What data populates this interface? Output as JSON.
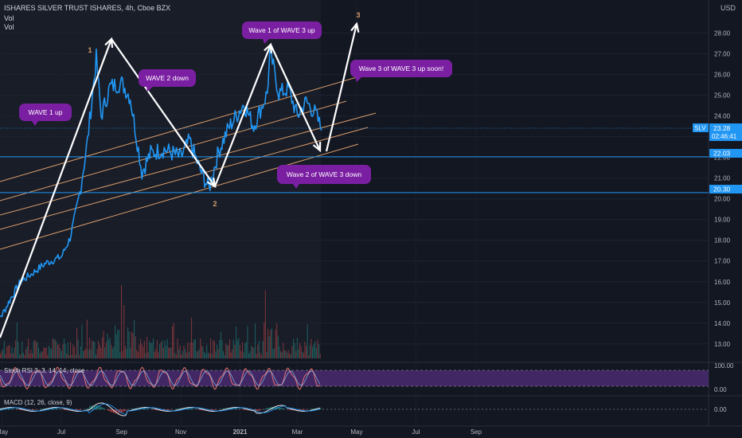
{
  "header": {
    "symbol_line": "ISHARES SILVER TRUST ISHARES, 4h, Cboe BZX",
    "vol_label_1": "Vol",
    "vol_label_2": "Vol"
  },
  "currency": "USD",
  "price_axis": {
    "ticks": [
      "28.00",
      "27.00",
      "26.00",
      "25.00",
      "24.00",
      "23.00",
      "22.00",
      "21.00",
      "20.00",
      "19.00",
      "18.00",
      "17.00",
      "16.00",
      "15.00",
      "14.00",
      "13.00"
    ],
    "last": {
      "symbol": "SLV",
      "price": "23.28",
      "countdown": "02:46:41"
    },
    "levels": [
      "22.03",
      "20.30"
    ]
  },
  "stoch_panel": {
    "label": "Stoch RSI 3, 3, 14, 14, close",
    "ticks": [
      "100.00",
      "0.00"
    ]
  },
  "macd_panel": {
    "label": "MACD (12, 26, close, 9)",
    "ticks": [
      "0.00"
    ]
  },
  "time_axis": [
    "May",
    "Jul",
    "Sep",
    "Nov",
    "2021",
    "Mar",
    "May",
    "Jul",
    "Sep"
  ],
  "annotations": [
    {
      "text": "WAVE 1 up"
    },
    {
      "text": "WAVE 2 down"
    },
    {
      "text": "Wave 1 of WAVE 3 up"
    },
    {
      "text": "Wave 3 of WAVE 3 up soon!"
    },
    {
      "text": "Wave 2 of WAVE 3 down"
    }
  ],
  "wave_labels": [
    "1",
    "2",
    "3"
  ],
  "colors": {
    "background": "#131722",
    "price_line": "#2196f3",
    "bubble": "#7b1fa2",
    "channel": "#d89b6a",
    "level_line": "#2196f3",
    "stoch": "#e57373",
    "stoch_band": "#4a2a70"
  },
  "chart_data": {
    "type": "line",
    "title": "ISHARES SILVER TRUST ISHARES, 4h, Cboe BZX",
    "xlabel": "",
    "ylabel": "",
    "ylim": [
      12.3,
      29.6
    ],
    "x_ticks": [
      "May",
      "Jul",
      "Sep",
      "Nov",
      "2021",
      "Mar",
      "May",
      "Jul",
      "Sep"
    ],
    "series": [
      {
        "name": "SLV",
        "x": [
          "2020-04-20",
          "2020-05-01",
          "2020-05-10",
          "2020-05-20",
          "2020-06-01",
          "2020-06-15",
          "2020-07-01",
          "2020-07-10",
          "2020-07-20",
          "2020-07-28",
          "2020-08-06",
          "2020-08-11",
          "2020-08-20",
          "2020-09-01",
          "2020-09-10",
          "2020-09-22",
          "2020-10-01",
          "2020-10-15",
          "2020-11-01",
          "2020-11-10",
          "2020-11-20",
          "2020-11-30",
          "2020-12-10",
          "2020-12-20",
          "2021-01-05",
          "2021-01-15",
          "2021-01-29",
          "2021-02-01",
          "2021-02-10",
          "2021-02-20",
          "2021-03-01",
          "2021-03-10",
          "2021-03-20",
          "2021-03-26"
        ],
        "y": [
          14.0,
          14.4,
          15.2,
          16.0,
          16.4,
          16.9,
          17.2,
          18.1,
          20.3,
          22.8,
          26.8,
          24.0,
          25.4,
          25.6,
          24.9,
          21.3,
          22.2,
          22.4,
          22.0,
          22.8,
          21.5,
          20.5,
          22.3,
          23.4,
          24.6,
          23.5,
          25.1,
          27.1,
          25.1,
          25.3,
          24.0,
          24.7,
          24.1,
          23.3
        ]
      }
    ],
    "levels": [
      22.03,
      20.3
    ],
    "current_price": 23.28
  }
}
